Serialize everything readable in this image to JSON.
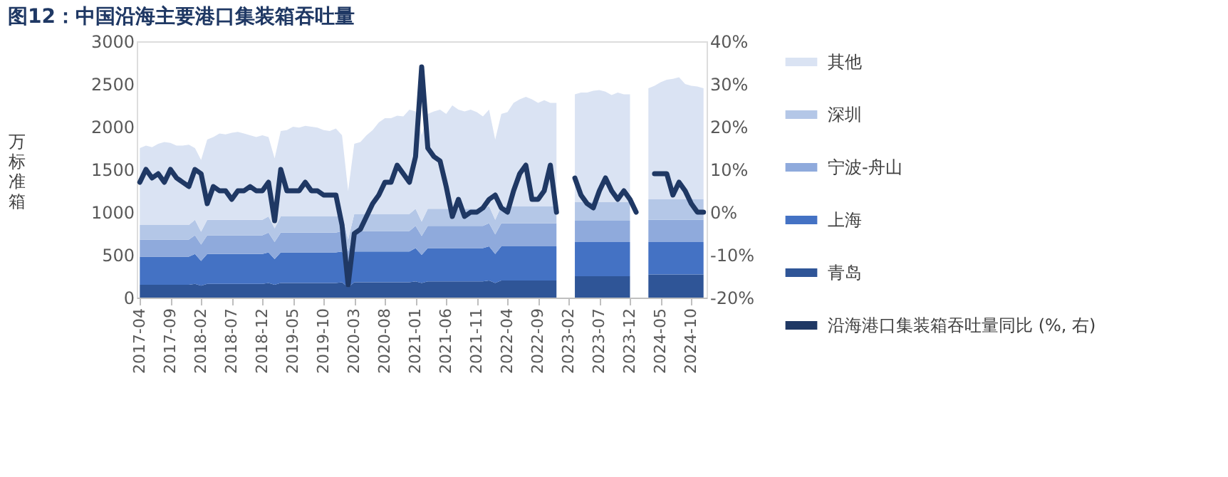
{
  "chart_data": {
    "type": "area",
    "stacked": true,
    "title": "图12：中国沿海主要港口集装箱吞吐量",
    "ylabel": "万标准箱",
    "categories": [
      "2017-04",
      null,
      null,
      null,
      null,
      "2017-09",
      null,
      null,
      null,
      null,
      "2018-02",
      null,
      null,
      null,
      null,
      "2018-07",
      null,
      null,
      null,
      null,
      "2018-12",
      null,
      null,
      null,
      null,
      "2019-05",
      null,
      null,
      null,
      null,
      "2019-10",
      null,
      null,
      null,
      null,
      "2020-03",
      null,
      null,
      null,
      null,
      "2020-08",
      null,
      null,
      null,
      null,
      "2021-01",
      null,
      null,
      null,
      null,
      "2021-06",
      null,
      null,
      null,
      null,
      "2021-11",
      null,
      null,
      null,
      null,
      "2022-04",
      null,
      null,
      null,
      null,
      "2022-09",
      null,
      null,
      null,
      null,
      "2023-02",
      null,
      null,
      null,
      null,
      "2023-07",
      null,
      null,
      null,
      null,
      "2023-12",
      null,
      null,
      null,
      null,
      "2024-05",
      null,
      null,
      null,
      null,
      "2024-10",
      null,
      null
    ],
    "series": [
      {
        "name": "青岛",
        "color": "#2f5597",
        "values": [
          150,
          150,
          150,
          150,
          150,
          150,
          150,
          150,
          150,
          160,
          140,
          160,
          160,
          160,
          160,
          160,
          160,
          160,
          160,
          160,
          160,
          170,
          150,
          170,
          170,
          170,
          170,
          170,
          170,
          170,
          170,
          170,
          170,
          180,
          120,
          180,
          180,
          180,
          180,
          180,
          180,
          180,
          180,
          180,
          180,
          190,
          170,
          190,
          190,
          190,
          190,
          190,
          190,
          190,
          190,
          190,
          190,
          200,
          170,
          200,
          200,
          200,
          200,
          200,
          200,
          200,
          200,
          200,
          200,
          null,
          null,
          250,
          250,
          250,
          250,
          250,
          250,
          250,
          250,
          250,
          250,
          null,
          null,
          270,
          270,
          270,
          270,
          270,
          270,
          270,
          270,
          270,
          270
        ]
      },
      {
        "name": "上海",
        "color": "#4472c4",
        "values": [
          330,
          330,
          330,
          330,
          330,
          330,
          330,
          330,
          330,
          350,
          290,
          350,
          350,
          350,
          350,
          350,
          350,
          350,
          350,
          350,
          350,
          360,
          300,
          360,
          360,
          360,
          360,
          360,
          360,
          360,
          360,
          360,
          360,
          360,
          250,
          360,
          360,
          360,
          360,
          360,
          360,
          360,
          360,
          360,
          360,
          390,
          330,
          390,
          390,
          390,
          390,
          390,
          390,
          390,
          390,
          390,
          390,
          400,
          340,
          400,
          400,
          400,
          400,
          400,
          400,
          400,
          400,
          400,
          400,
          null,
          null,
          400,
          400,
          400,
          400,
          400,
          400,
          400,
          400,
          400,
          400,
          null,
          null,
          380,
          380,
          380,
          380,
          380,
          380,
          380,
          380,
          380,
          380
        ]
      },
      {
        "name": "宁波-舟山",
        "color": "#8faadc",
        "values": [
          200,
          200,
          200,
          200,
          200,
          200,
          200,
          200,
          200,
          220,
          190,
          220,
          220,
          220,
          220,
          220,
          220,
          220,
          220,
          220,
          220,
          230,
          200,
          230,
          230,
          230,
          230,
          230,
          230,
          230,
          230,
          230,
          230,
          240,
          170,
          240,
          240,
          240,
          240,
          240,
          240,
          240,
          240,
          240,
          240,
          260,
          220,
          260,
          260,
          260,
          260,
          260,
          260,
          260,
          260,
          260,
          260,
          270,
          230,
          270,
          270,
          270,
          270,
          270,
          270,
          270,
          270,
          270,
          270,
          null,
          null,
          250,
          250,
          250,
          250,
          250,
          250,
          250,
          250,
          250,
          250,
          null,
          null,
          260,
          260,
          260,
          260,
          260,
          260,
          260,
          260,
          260,
          260
        ]
      },
      {
        "name": "深圳",
        "color": "#b4c7e7",
        "values": [
          170,
          170,
          170,
          170,
          170,
          170,
          170,
          170,
          170,
          180,
          150,
          180,
          180,
          180,
          180,
          180,
          180,
          180,
          180,
          180,
          180,
          190,
          160,
          190,
          190,
          190,
          190,
          190,
          190,
          190,
          190,
          190,
          190,
          200,
          140,
          200,
          200,
          200,
          200,
          200,
          200,
          200,
          200,
          200,
          200,
          200,
          170,
          200,
          200,
          200,
          200,
          200,
          200,
          200,
          200,
          200,
          200,
          200,
          170,
          200,
          200,
          200,
          200,
          200,
          200,
          200,
          200,
          200,
          200,
          null,
          null,
          220,
          220,
          220,
          220,
          220,
          220,
          220,
          220,
          220,
          220,
          null,
          null,
          240,
          240,
          240,
          240,
          240,
          240,
          240,
          240,
          240,
          240
        ]
      },
      {
        "name": "其他",
        "color": "#dae3f3",
        "values": [
          900,
          930,
          910,
          950,
          970,
          960,
          930,
          930,
          940,
          840,
          840,
          940,
          970,
          1010,
          1000,
          1020,
          1030,
          1010,
          990,
          970,
          990,
          930,
          820,
          1000,
          1010,
          1050,
          1040,
          1060,
          1050,
          1040,
          1010,
          1000,
          1030,
          920,
          570,
          820,
          840,
          920,
          980,
          1070,
          1120,
          1120,
          1150,
          1140,
          1220,
          1140,
          1010,
          1110,
          1140,
          1160,
          1110,
          1210,
          1160,
          1140,
          1160,
          1130,
          1080,
          1130,
          940,
          1080,
          1100,
          1210,
          1250,
          1280,
          1250,
          1210,
          1240,
          1210,
          1210,
          null,
          null,
          1260,
          1280,
          1280,
          1300,
          1310,
          1290,
          1250,
          1280,
          1260,
          1260,
          null,
          null,
          1300,
          1330,
          1370,
          1400,
          1410,
          1430,
          1350,
          1330,
          1320,
          1300
        ]
      },
      {
        "name": "沿海港口集装箱吞吐量同比 (%, 右)",
        "type": "line",
        "axis": "y2",
        "color": "#1f3864",
        "values": [
          7,
          10,
          8,
          9,
          7,
          10,
          8,
          7,
          6,
          10,
          9,
          2,
          6,
          5,
          5,
          3,
          5,
          5,
          6,
          5,
          5,
          7,
          -2,
          10,
          5,
          5,
          5,
          7,
          5,
          5,
          4,
          4,
          4,
          -3,
          -17,
          -5,
          -4,
          -1,
          2,
          4,
          7,
          7,
          11,
          9,
          7,
          13,
          34,
          15,
          13,
          12,
          6,
          -1,
          3,
          -1,
          0,
          0,
          1,
          3,
          4,
          1,
          0,
          5,
          9,
          11,
          3,
          3,
          5,
          11,
          0,
          null,
          null,
          8,
          4,
          2,
          1,
          5,
          8,
          5,
          3,
          5,
          3,
          0,
          null,
          null,
          9,
          9,
          9,
          4,
          7,
          5,
          2,
          0,
          0
        ]
      }
    ],
    "ylim": [
      0,
      3000
    ],
    "yticks": [
      0,
      500,
      1000,
      1500,
      2000,
      2500,
      3000
    ],
    "y2lim": [
      -20,
      40
    ],
    "y2ticks": [
      {
        "value": -20,
        "label": "-20%"
      },
      {
        "value": -10,
        "label": "-10%"
      },
      {
        "value": 0,
        "label": "0%"
      },
      {
        "value": 10,
        "label": "10%"
      },
      {
        "value": 20,
        "label": "20%"
      },
      {
        "value": 30,
        "label": "30%"
      },
      {
        "value": 40,
        "label": "40%"
      }
    ],
    "legend": "right"
  }
}
